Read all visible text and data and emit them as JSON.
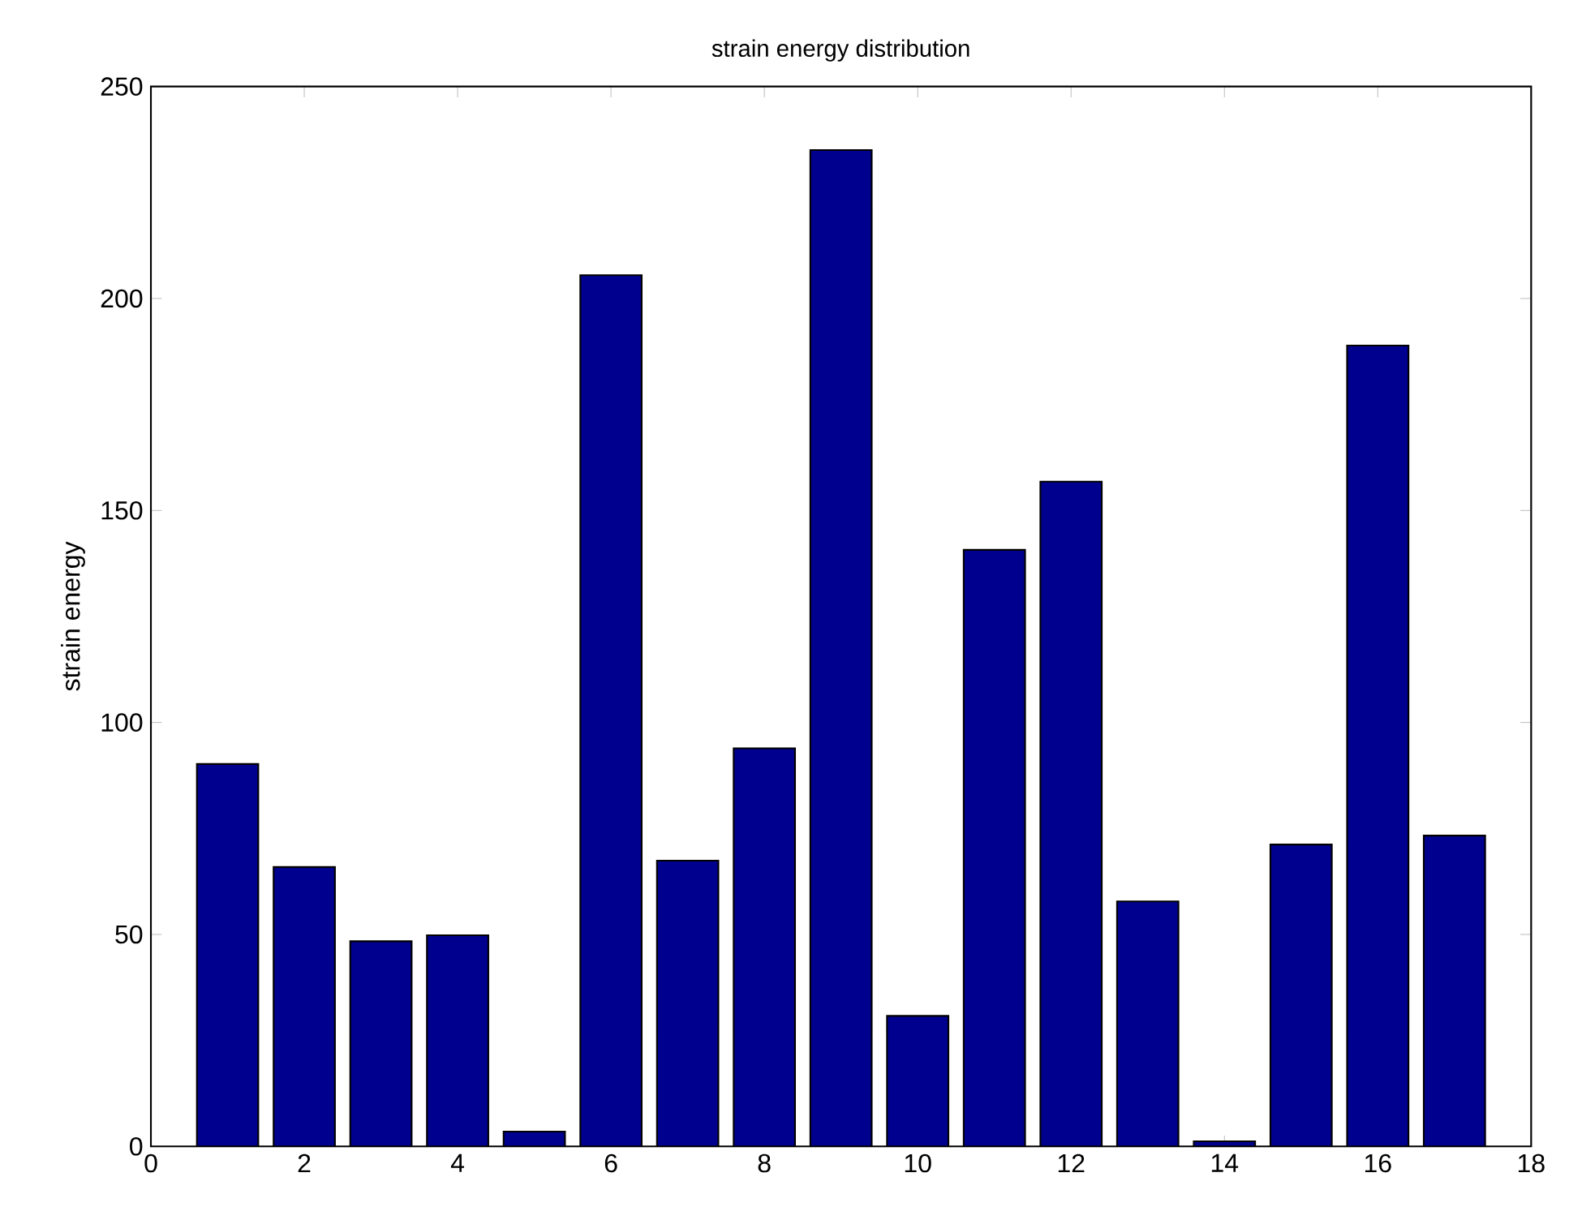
{
  "chart_data": {
    "type": "bar",
    "title": "strain energy distribution",
    "ylabel": "strain energy",
    "x": [
      1,
      2,
      3,
      4,
      5,
      6,
      7,
      8,
      9,
      10,
      11,
      12,
      13,
      14,
      15,
      16,
      17
    ],
    "values": [
      90.2,
      65.9,
      48.4,
      49.8,
      3.5,
      205.5,
      67.4,
      93.9,
      235,
      30.8,
      140.7,
      156.8,
      57.8,
      1.2,
      71.2,
      188.9,
      73.3
    ],
    "color": "#00008f",
    "xlim": [
      0,
      18
    ],
    "xticks": [
      0,
      2,
      4,
      6,
      8,
      10,
      12,
      14,
      16,
      18
    ],
    "ylim": [
      0,
      250
    ],
    "yticks": [
      0,
      50,
      100,
      150,
      200,
      250
    ],
    "grid": false
  }
}
